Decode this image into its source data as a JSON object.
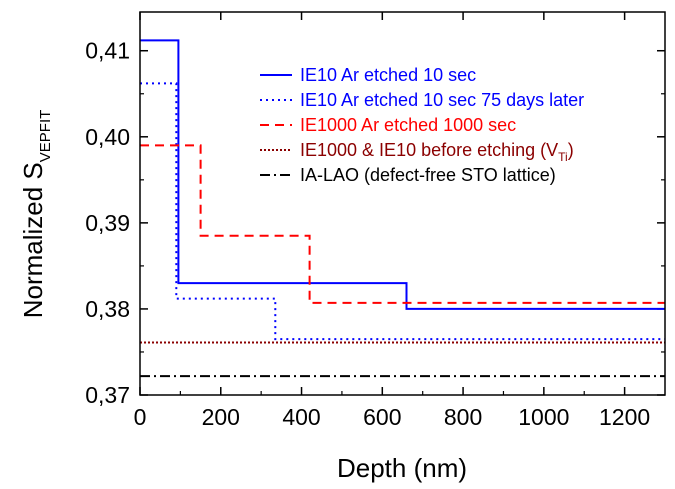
{
  "chart_data": {
    "type": "line",
    "xlabel": "Depth (nm)",
    "ylabel_main": "Normalized S",
    "ylabel_sub": "VEPFIT",
    "xlim": [
      0,
      1300
    ],
    "ylim": [
      0.37,
      0.4145
    ],
    "x_ticks": [
      0,
      200,
      400,
      600,
      800,
      1000,
      1200
    ],
    "x_tick_labels": [
      "0",
      "200",
      "400",
      "600",
      "800",
      "1000",
      "1200"
    ],
    "y_ticks": [
      0.37,
      0.38,
      0.39,
      0.4,
      0.41
    ],
    "y_tick_labels": [
      "0,37",
      "0,38",
      "0,39",
      "0,40",
      "0,41"
    ],
    "grid": false,
    "legend_position": "top-right",
    "series": [
      {
        "name": "IE10 Ar etched 10 sec",
        "color": "#0000ff",
        "dash": "solid",
        "points": [
          [
            0,
            0.4112
          ],
          [
            95,
            0.4112
          ],
          [
            95,
            0.383
          ],
          [
            660,
            0.383
          ],
          [
            660,
            0.38
          ],
          [
            1300,
            0.38
          ]
        ]
      },
      {
        "name": "IE10 Ar etched 10 sec 75 days later",
        "color": "#0000ff",
        "dash": "dot",
        "points": [
          [
            0,
            0.4062
          ],
          [
            90,
            0.4062
          ],
          [
            90,
            0.3812
          ],
          [
            335,
            0.3812
          ],
          [
            335,
            0.3765
          ],
          [
            1300,
            0.3765
          ]
        ]
      },
      {
        "name": "IE1000 Ar etched 1000 sec",
        "color": "#ff0000",
        "dash": "dash",
        "points": [
          [
            0,
            0.399
          ],
          [
            150,
            0.399
          ],
          [
            150,
            0.3885
          ],
          [
            420,
            0.3885
          ],
          [
            420,
            0.3807
          ],
          [
            1300,
            0.3807
          ]
        ]
      },
      {
        "name": "IE1000 & IE10 before etching (V",
        "name_sub": "Ti",
        "name_suffix": ")",
        "color": "#8b0000",
        "dash": "shortdot",
        "points": [
          [
            0,
            0.3761
          ],
          [
            1300,
            0.3761
          ]
        ]
      },
      {
        "name": "IA-LAO (defect-free STO lattice)",
        "color": "#000000",
        "dash": "dashdot",
        "points": [
          [
            0,
            0.3722
          ],
          [
            1300,
            0.3722
          ]
        ]
      }
    ]
  }
}
